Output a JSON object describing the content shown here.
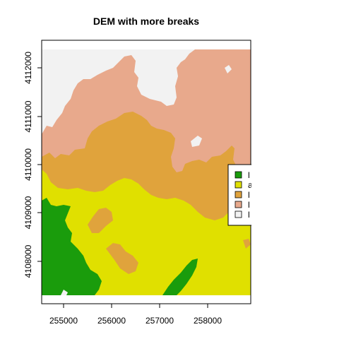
{
  "title": "DEM with more breaks",
  "axes": {
    "x_ticks": [
      "255000",
      "256000",
      "257000",
      "258000"
    ],
    "y_ticks": [
      "4108000",
      "4109000",
      "4110000",
      "4111000",
      "4112000"
    ]
  },
  "legend": {
    "placement": "right",
    "entries": [
      {
        "label": "l",
        "color": "#1a9c0c"
      },
      {
        "label": "a",
        "color": "#e0e000"
      },
      {
        "label": "l",
        "color": "#e0a33c"
      },
      {
        "label": "l",
        "color": "#e8a98c"
      },
      {
        "label": "l",
        "color": "#f2f2f2"
      }
    ]
  },
  "colors": {
    "class1": "#1a9c0c",
    "class2": "#e0e000",
    "class3": "#e0a33c",
    "class4": "#e8a98c",
    "class5": "#f2f2f2"
  }
}
